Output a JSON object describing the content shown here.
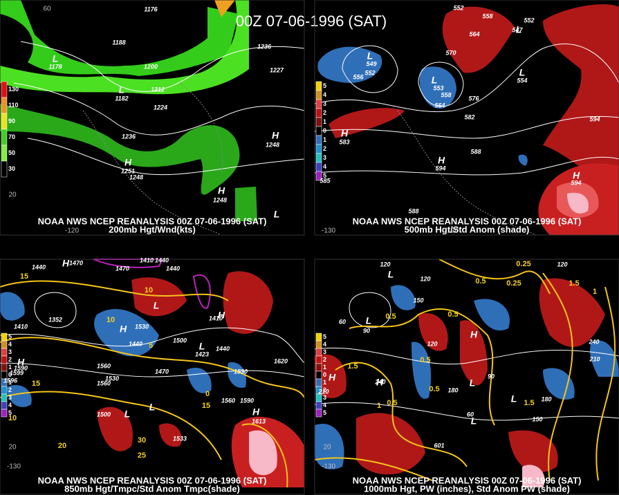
{
  "title": "00Z 07-06-1996 (SAT)",
  "panels": [
    {
      "caption": "NOAA NWS NCEP REANALYSIS 00Z 07-06-1996 (SAT)",
      "subtitle": "200mb Hgt/Wnd(kts)",
      "legend": [
        "130",
        "110",
        "90",
        "70",
        "50",
        "30"
      ],
      "labels": [
        "1176",
        "1188",
        "1200",
        "1212",
        "1224",
        "1236",
        "1236",
        "1227",
        "1248",
        "1251",
        "1248",
        "1248",
        "1182",
        "1178",
        "L",
        "L",
        "H",
        "H",
        "H",
        "L"
      ],
      "grid_labels": [
        "60",
        "20",
        "-120"
      ]
    },
    {
      "caption": "NOAA NWS NCEP REANALYSIS 00Z 07-06-1996 (SAT)",
      "subtitle": "500mb Hgt/Std Anom (shade)",
      "legend": [
        "5",
        "4",
        "3",
        "2",
        "1",
        "0",
        "1",
        "2",
        "3",
        "4",
        "5"
      ],
      "labels": [
        "552",
        "558",
        "564",
        "570",
        "547",
        "552",
        "556",
        "552",
        "549",
        "553",
        "558",
        "564",
        "576",
        "582",
        "588",
        "594",
        "594",
        "583",
        "585",
        "588",
        "554",
        "594",
        "L",
        "L",
        "L",
        "L",
        "H",
        "H",
        "H"
      ],
      "grid_labels": [
        "-130",
        "-120"
      ]
    },
    {
      "caption": "NOAA NWS NCEP REANALYSIS 00Z 07-06-1996 (SAT)",
      "subtitle": "850mb Hgt/Tmpc/Std Anom Tmpc(shade)",
      "legend": [
        "5",
        "4",
        "3",
        "2",
        "1",
        "0",
        "1",
        "2",
        "3",
        "4",
        "5"
      ],
      "labels": [
        "1410",
        "1440",
        "1470",
        "1440",
        "1440",
        "1410",
        "1352",
        "1530",
        "1440",
        "1500",
        "1423",
        "1440",
        "1470",
        "1530",
        "1560",
        "1590",
        "1599",
        "1596",
        "1560",
        "1530",
        "1500",
        "1620",
        "1560",
        "1590",
        "1470",
        "1410",
        "1533",
        "1613",
        "H",
        "L",
        "H",
        "L",
        "L",
        "H",
        "H",
        "L",
        "H"
      ],
      "temp_labels": [
        "15",
        "10",
        "5",
        "0",
        "10",
        "15",
        "30",
        "25",
        "20",
        "15",
        "10"
      ],
      "grid_labels": [
        "-130",
        "20"
      ]
    },
    {
      "caption": "NOAA NWS NCEP REANALYSIS 00Z 07-06-1996 (SAT)",
      "subtitle": "1000mb Hgt, PW (inches), Std Anom PW (shade)",
      "legend": [
        "5",
        "4",
        "3",
        "2",
        "1",
        "0",
        "1",
        "2",
        "3",
        "4",
        "5"
      ],
      "labels": [
        "120",
        "120",
        "150",
        "120",
        "60",
        "90",
        "240",
        "210",
        "210",
        "180",
        "150",
        "240",
        "180",
        "90",
        "60",
        "601",
        "120",
        "L",
        "L",
        "H",
        "L",
        "H",
        "L",
        "H",
        "L"
      ],
      "temp_labels": [
        "0.25",
        "0.5",
        "0.25",
        "1.5",
        "1",
        "0.5",
        "0.5",
        "1.5",
        "0.5",
        "0.5",
        "1.5",
        "1",
        "0.5"
      ],
      "grid_labels": [
        "-130",
        "20"
      ]
    }
  ]
}
